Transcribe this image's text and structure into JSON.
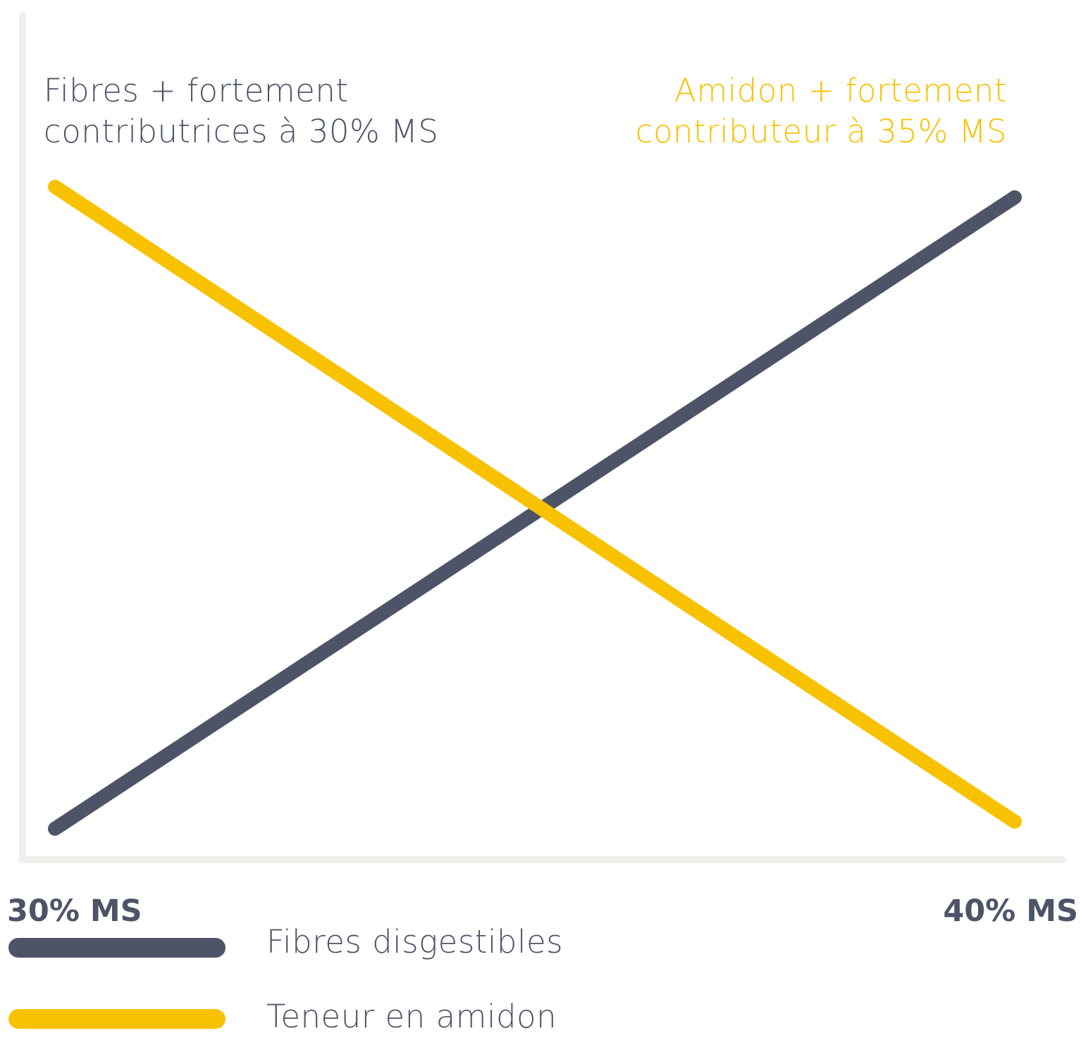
{
  "chart_data": {
    "type": "line",
    "x": [
      "30% MS",
      "40% MS"
    ],
    "series": [
      {
        "name": "Fibres disgestibles",
        "color": "#4e5467",
        "values": [
          0,
          1
        ]
      },
      {
        "name": "Teneur en amidon",
        "color": "#f8c200",
        "values": [
          1,
          0
        ]
      }
    ],
    "annotations": {
      "left": [
        "Fibres + fortement",
        "contributrices à 30% MS"
      ],
      "right": [
        "Amidon + fortement",
        "contributeur à 35% MS"
      ]
    },
    "legend_placement": "bottom-left",
    "grid": false,
    "axis_color": "#f0efeb"
  }
}
